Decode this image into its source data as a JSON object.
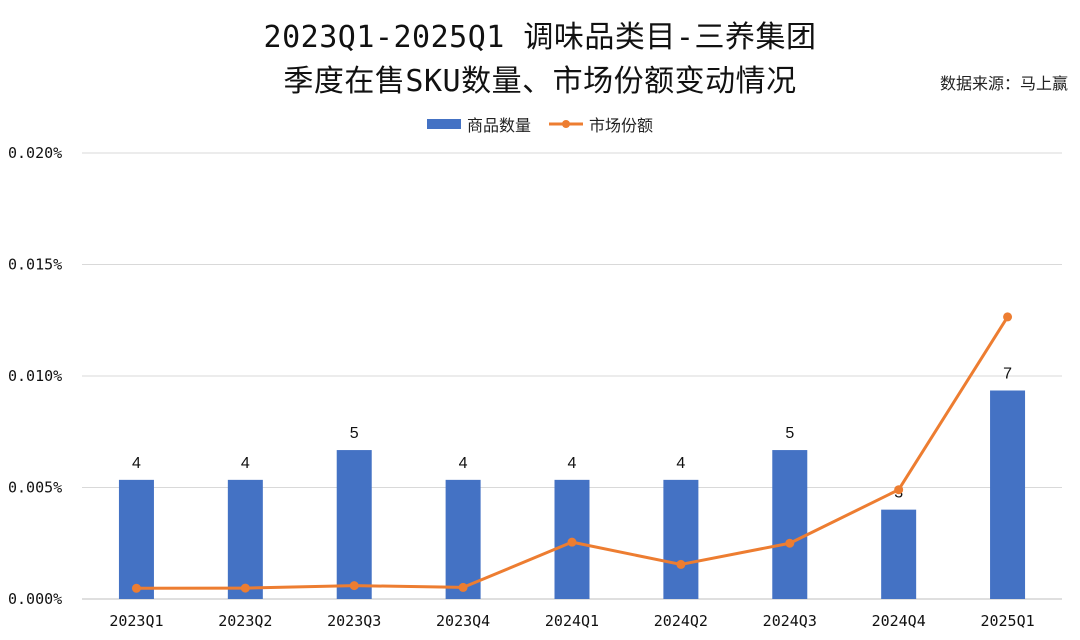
{
  "header": {
    "title_line1": "2023Q1-2025Q1 调味品类目-三养集团",
    "title_line2": "季度在售SKU数量、市场份额变动情况",
    "source": "数据来源：马上赢"
  },
  "legend": {
    "bar_label": "商品数量",
    "line_label": "市场份额"
  },
  "colors": {
    "bar": "#4472C4",
    "line": "#ED7D31",
    "grid": "#d9d9d9"
  },
  "chart_data": {
    "type": "bar",
    "title": "2023Q1-2025Q1 调味品类目-三养集团 季度在售SKU数量、市场份额变动情况",
    "categories": [
      "2023Q1",
      "2023Q2",
      "2023Q3",
      "2023Q4",
      "2024Q1",
      "2024Q2",
      "2024Q3",
      "2024Q4",
      "2025Q1"
    ],
    "y_ticks": [
      "0.000%",
      "0.005%",
      "0.010%",
      "0.015%",
      "0.020%"
    ],
    "ylim": [
      0,
      0.02
    ],
    "grid": true,
    "legend_position": "top-center",
    "series": [
      {
        "name": "商品数量",
        "type": "bar",
        "values": [
          4,
          4,
          5,
          4,
          4,
          4,
          5,
          3,
          7
        ],
        "labels": [
          "4",
          "4",
          "5",
          "4",
          "4",
          "4",
          "5",
          "3",
          "7"
        ]
      },
      {
        "name": "市场份额",
        "type": "line",
        "values": [
          0.00048,
          0.00049,
          0.0006,
          0.00052,
          0.00255,
          0.00155,
          0.0025,
          0.0049,
          0.01265
        ]
      }
    ]
  }
}
